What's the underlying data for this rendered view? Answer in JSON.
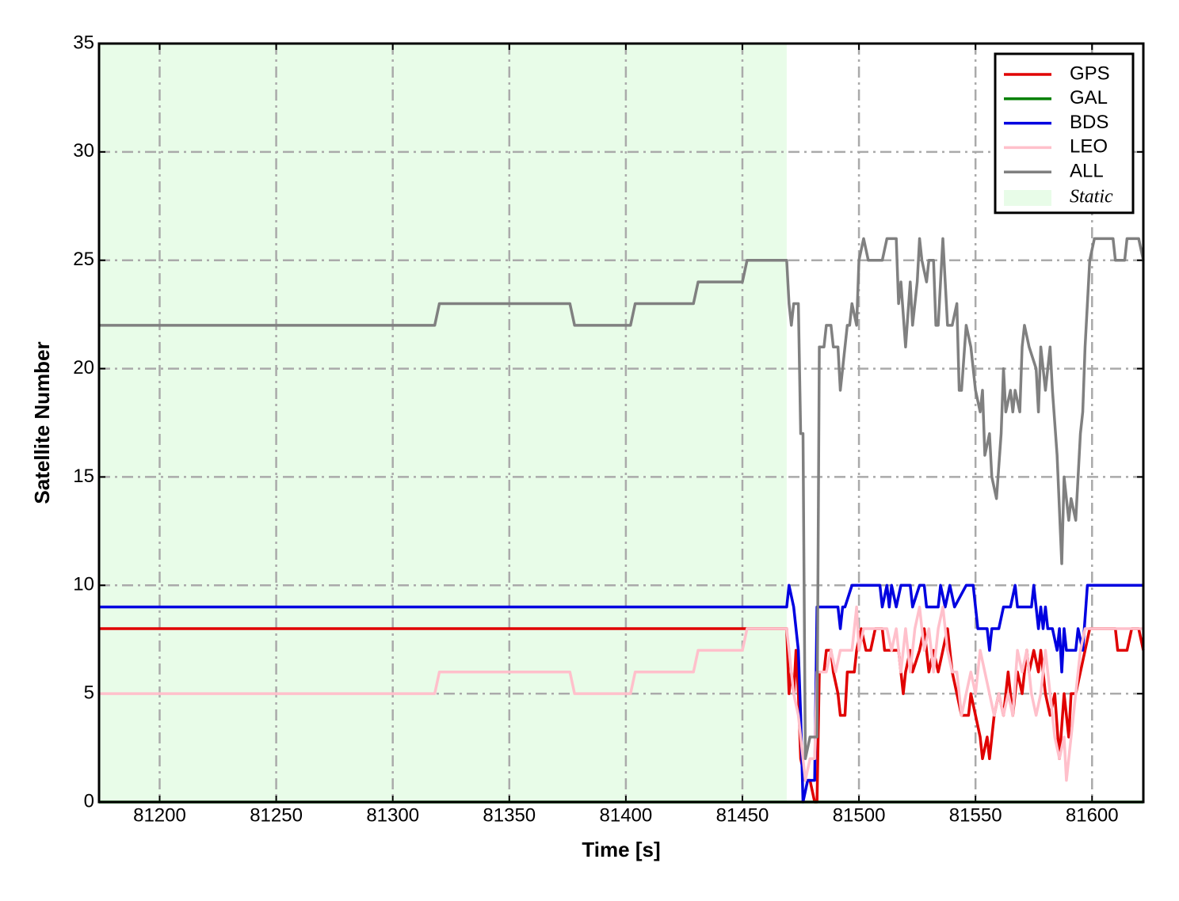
{
  "chart_data": {
    "type": "line",
    "xlabel": "Time [s]",
    "ylabel": "Satellite Number",
    "xlim": [
      81174,
      81622
    ],
    "ylim": [
      0,
      35
    ],
    "xticks": [
      81200,
      81250,
      81300,
      81350,
      81400,
      81450,
      81500,
      81550,
      81600
    ],
    "yticks": [
      0,
      5,
      10,
      15,
      20,
      25,
      30,
      35
    ],
    "grid": true,
    "legend": "upper right",
    "shaded_region": {
      "label": "Static",
      "xmin": 81174,
      "xmax": 81469,
      "color": "#e8fce8"
    },
    "series": [
      {
        "name": "GPS",
        "color": "#e00000",
        "x": [
          81174,
          81469,
          81470,
          81471,
          81472,
          81473,
          81474,
          81475,
          81477,
          81479,
          81481,
          81482,
          81483,
          81485,
          81486,
          81488,
          81489,
          81491,
          81492,
          81494,
          81495,
          81498,
          81499,
          81501,
          81503,
          81505,
          81507,
          81510,
          81511,
          81517,
          81518,
          81519,
          81520,
          81522,
          81523,
          81526,
          81528,
          81530,
          81532,
          81534,
          81536,
          81538,
          81540,
          81542,
          81544,
          81547,
          81548,
          81550,
          81552,
          81553,
          81555,
          81556,
          81558,
          81560,
          81562,
          81564,
          81566,
          81568,
          81570,
          81572,
          81573,
          81575,
          81577,
          81578,
          81580,
          81582,
          81584,
          81586,
          81588,
          81590,
          81591,
          81593,
          81595,
          81597,
          81599,
          81610,
          81611,
          81615,
          81617,
          81620,
          81622
        ],
        "values": [
          8,
          8,
          5,
          6,
          5,
          7,
          5,
          2,
          1,
          1,
          0,
          0,
          6,
          6,
          7,
          7,
          6,
          5,
          4,
          4,
          6,
          6,
          7,
          8,
          7,
          7,
          8,
          8,
          7,
          7,
          6,
          5,
          6,
          7,
          6,
          7,
          8,
          6,
          7,
          6,
          7,
          8,
          6,
          5,
          4,
          4,
          5,
          4,
          3,
          2,
          3,
          2,
          4,
          5,
          4,
          6,
          4,
          6,
          5,
          7,
          6,
          7,
          6,
          7,
          5,
          4,
          5,
          2,
          5,
          3,
          5,
          5,
          6,
          7,
          8,
          8,
          7,
          7,
          8,
          8,
          7
        ]
      },
      {
        "name": "GAL",
        "color": "#008000",
        "x": [
          81174,
          81622
        ],
        "values": [
          0,
          0
        ]
      },
      {
        "name": "BDS",
        "color": "#0000e0",
        "x": [
          81174,
          81469,
          81470,
          81472,
          81474,
          81475,
          81476,
          81478,
          81481,
          81482,
          81491,
          81492,
          81493,
          81494,
          81497,
          81509,
          81510,
          81512,
          81513,
          81514,
          81516,
          81518,
          81522,
          81523,
          81526,
          81528,
          81529,
          81534,
          81535,
          81537,
          81539,
          81541,
          81546,
          81549,
          81551,
          81555,
          81556,
          81557,
          81560,
          81562,
          81565,
          81567,
          81568,
          81574,
          81575,
          81577,
          81578,
          81579,
          81580,
          81581,
          81583,
          81585,
          81586,
          81587,
          81588,
          81589,
          81593,
          81594,
          81596,
          81598,
          81622
        ],
        "values": [
          9,
          9,
          10,
          9,
          7,
          4,
          0,
          1,
          1,
          9,
          9,
          8,
          9,
          9,
          10,
          10,
          9,
          10,
          9,
          10,
          9,
          10,
          10,
          9,
          10,
          10,
          9,
          9,
          10,
          9,
          10,
          9,
          10,
          10,
          8,
          8,
          7,
          8,
          8,
          9,
          9,
          10,
          9,
          9,
          10,
          8,
          9,
          8,
          9,
          8,
          8,
          7,
          8,
          6,
          8,
          7,
          7,
          8,
          7,
          10,
          10
        ]
      },
      {
        "name": "LEO",
        "color": "#ffc0cb",
        "x": [
          81174,
          81318,
          81320,
          81376,
          81378,
          81402,
          81404,
          81429,
          81431,
          81450,
          81452,
          81469,
          81470,
          81472,
          81474,
          81476,
          81477,
          81479,
          81481,
          81482,
          81486,
          81488,
          81490,
          81492,
          81497,
          81499,
          81500,
          81502,
          81512,
          81514,
          81516,
          81518,
          81520,
          81522,
          81524,
          81526,
          81528,
          81530,
          81532,
          81534,
          81536,
          81538,
          81540,
          81542,
          81544,
          81546,
          81548,
          81550,
          81552,
          81554,
          81556,
          81558,
          81560,
          81562,
          81564,
          81566,
          81568,
          81570,
          81572,
          81574,
          81576,
          81578,
          81580,
          81582,
          81584,
          81586,
          81588,
          81589,
          81591,
          81593,
          81595,
          81597,
          81622
        ],
        "values": [
          5,
          5,
          6,
          6,
          5,
          5,
          6,
          6,
          7,
          7,
          8,
          8,
          7,
          5,
          4,
          2,
          1,
          2,
          2,
          6,
          6,
          7,
          6,
          7,
          7,
          9,
          7,
          8,
          8,
          7,
          8,
          6,
          8,
          6,
          8,
          9,
          7,
          8,
          6,
          8,
          9,
          7,
          6,
          6,
          4,
          5,
          6,
          5,
          7,
          6,
          5,
          4,
          5,
          4,
          5,
          4,
          7,
          6,
          7,
          5,
          4,
          5,
          7,
          5,
          3,
          2,
          3,
          1,
          3,
          5,
          7,
          8,
          8
        ]
      },
      {
        "name": "ALL",
        "color": "#808080",
        "x": [
          81174,
          81318,
          81320,
          81376,
          81378,
          81402,
          81404,
          81429,
          81431,
          81450,
          81452,
          81469,
          81470,
          81471,
          81472,
          81474,
          81475,
          81476,
          81477,
          81479,
          81482,
          81483,
          81485,
          81486,
          81488,
          81489,
          81491,
          81492,
          81493,
          81495,
          81496,
          81497,
          81499,
          81500,
          81502,
          81504,
          81510,
          81512,
          81516,
          81517,
          81518,
          81520,
          81522,
          81523,
          81525,
          81526,
          81527,
          81529,
          81530,
          81532,
          81533,
          81534,
          81536,
          81537,
          81538,
          81540,
          81542,
          81543,
          81544,
          81546,
          81548,
          81550,
          81552,
          81553,
          81554,
          81556,
          81557,
          81559,
          81561,
          81562,
          81563,
          81565,
          81566,
          81567,
          81569,
          81570,
          81571,
          81573,
          81576,
          81577,
          81578,
          81580,
          81582,
          81583,
          81585,
          81587,
          81588,
          81590,
          81591,
          81593,
          81595,
          81596,
          81597,
          81599,
          81601,
          81609,
          81610,
          81614,
          81615,
          81620,
          81622
        ],
        "values": [
          22,
          22,
          23,
          23,
          22,
          22,
          23,
          23,
          24,
          24,
          25,
          25,
          23,
          22,
          23,
          23,
          17,
          17,
          2,
          3,
          3,
          21,
          21,
          22,
          22,
          21,
          21,
          19,
          20,
          22,
          22,
          23,
          22,
          25,
          26,
          25,
          25,
          26,
          26,
          23,
          24,
          21,
          24,
          22,
          24,
          26,
          25,
          24,
          25,
          25,
          22,
          22,
          26,
          24,
          22,
          22,
          23,
          19,
          19,
          22,
          21,
          19,
          18,
          19,
          16,
          17,
          15,
          14,
          17,
          20,
          18,
          19,
          18,
          19,
          18,
          21,
          22,
          21,
          20,
          18,
          21,
          19,
          21,
          19,
          16,
          11,
          15,
          13,
          14,
          13,
          17,
          18,
          21,
          25,
          26,
          26,
          25,
          25,
          26,
          26,
          25
        ]
      }
    ]
  }
}
